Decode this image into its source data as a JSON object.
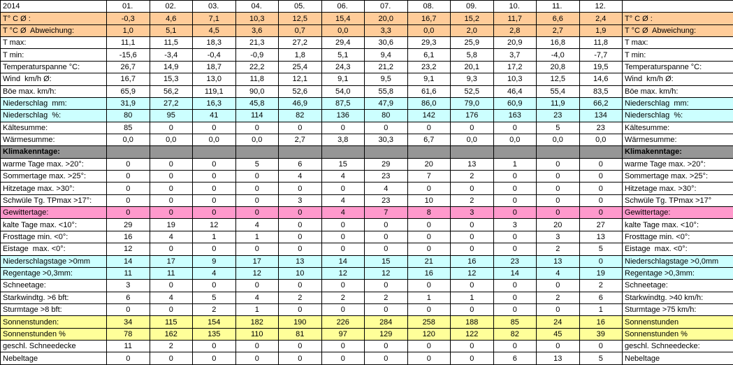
{
  "table": {
    "year": "2014",
    "months": [
      "01.",
      "02.",
      "03.",
      "04.",
      "05.",
      "06.",
      "07.",
      "08.",
      "09.",
      "10.",
      "11.",
      "12."
    ],
    "rows": [
      {
        "label": "T° C Ø :",
        "cells": [
          "-0,3",
          "4,6",
          "7,1",
          "10,3",
          "12,5",
          "15,4",
          "20,0",
          "16,7",
          "15,2",
          "11,7",
          "6,6",
          "2,4"
        ],
        "right": "T° C Ø :",
        "color": "#ffcc99"
      },
      {
        "label": "T °C Ø  Abweichung:",
        "cells": [
          "1,0",
          "5,1",
          "4,5",
          "3,6",
          "0,7",
          "0,0",
          "3,3",
          "0,0",
          "2,0",
          "2,8",
          "2,7",
          "1,9"
        ],
        "right": "T °C Ø  Abweichung:",
        "color": "#ffcc99"
      },
      {
        "label": "T max:",
        "cells": [
          "11,1",
          "11,5",
          "18,3",
          "21,3",
          "27,2",
          "29,4",
          "30,6",
          "29,3",
          "25,9",
          "20,9",
          "16,8",
          "11,8"
        ],
        "right": "T max:",
        "color": "#ffffff"
      },
      {
        "label": "T min:",
        "cells": [
          "-15,6",
          "-3,4",
          "-0,4",
          "-0,9",
          "1,8",
          "5,1",
          "9,4",
          "6,1",
          "5,8",
          "3,7",
          "-4,0",
          "-7,7"
        ],
        "right": "T min:",
        "color": "#ffffff"
      },
      {
        "label": "Temperaturspanne °C:",
        "cells": [
          "26,7",
          "14,9",
          "18,7",
          "22,2",
          "25,4",
          "24,3",
          "21,2",
          "23,2",
          "20,1",
          "17,2",
          "20,8",
          "19,5"
        ],
        "right": "Temperaturspanne °C:",
        "color": "#ffffff"
      },
      {
        "label": "Wind  km/h Ø:",
        "cells": [
          "16,7",
          "15,3",
          "13,0",
          "11,8",
          "12,1",
          "9,1",
          "9,5",
          "9,1",
          "9,3",
          "10,3",
          "12,5",
          "14,6"
        ],
        "right": "Wind  km/h Ø:",
        "color": "#ffffff"
      },
      {
        "label": "Böe max. km/h:",
        "cells": [
          "65,9",
          "56,2",
          "119,1",
          "90,0",
          "52,6",
          "54,0",
          "55,8",
          "61,6",
          "52,5",
          "46,4",
          "55,4",
          "83,5"
        ],
        "right": "Böe max. km/h:",
        "color": "#ffffff"
      },
      {
        "label": "Niederschlag  mm:",
        "cells": [
          "31,9",
          "27,2",
          "16,3",
          "45,8",
          "46,9",
          "87,5",
          "47,9",
          "86,0",
          "79,0",
          "60,9",
          "11,9",
          "66,2"
        ],
        "right": "Niederschlag  mm:",
        "color": "#ccffff"
      },
      {
        "label": "Niederschlag  %:",
        "cells": [
          "80",
          "95",
          "41",
          "114",
          "82",
          "136",
          "80",
          "142",
          "176",
          "163",
          "23",
          "134"
        ],
        "right": "Niederschlag  %:",
        "color": "#ccffff"
      },
      {
        "label": "Kältesumme:",
        "cells": [
          "85",
          "0",
          "0",
          "0",
          "0",
          "0",
          "0",
          "0",
          "0",
          "0",
          "5",
          "23"
        ],
        "right": "Kältesumme:",
        "color": "#ffffff"
      },
      {
        "label": "Wärmesumme:",
        "cells": [
          "0,0",
          "0,0",
          "0,0",
          "0,0",
          "2,7",
          "3,8",
          "30,3",
          "6,7",
          "0,0",
          "0,0",
          "0,0",
          "0,0"
        ],
        "right": "Wärmesumme:",
        "color": "#ffffff"
      },
      {
        "label": "Klimakenntage:",
        "cells": [],
        "right": "Klimakenntage:",
        "color": "#969696"
      },
      {
        "label": "warme Tage max. >20°:",
        "cells": [
          "0",
          "0",
          "0",
          "5",
          "6",
          "15",
          "29",
          "20",
          "13",
          "1",
          "0",
          "0"
        ],
        "right": "warme Tage max. >20°:",
        "color": "#ffffff"
      },
      {
        "label": "Sommertage max. >25°:",
        "cells": [
          "0",
          "0",
          "0",
          "0",
          "4",
          "4",
          "23",
          "7",
          "2",
          "0",
          "0",
          "0"
        ],
        "right": "Sommertage max. >25°:",
        "color": "#ffffff"
      },
      {
        "label": "Hitzetage max. >30°:",
        "cells": [
          "0",
          "0",
          "0",
          "0",
          "0",
          "0",
          "4",
          "0",
          "0",
          "0",
          "0",
          "0"
        ],
        "right": "Hitzetage max. >30°:",
        "color": "#ffffff"
      },
      {
        "label": "Schwüle Tg. TPmax >17°:",
        "cells": [
          "0",
          "0",
          "0",
          "0",
          "3",
          "4",
          "23",
          "10",
          "2",
          "0",
          "0",
          "0"
        ],
        "right": "Schwüle Tg. TPmax >17°",
        "color": "#ffffff"
      },
      {
        "label": "Gewittertage:",
        "cells": [
          "0",
          "0",
          "0",
          "0",
          "0",
          "4",
          "7",
          "8",
          "3",
          "0",
          "0",
          "0"
        ],
        "right": "Gewittertage:",
        "color": "#ff99cc"
      },
      {
        "label": "kalte Tage max. <10°:",
        "cells": [
          "29",
          "19",
          "12",
          "4",
          "0",
          "0",
          "0",
          "0",
          "0",
          "3",
          "20",
          "27"
        ],
        "right": "kalte Tage max. <10°:",
        "color": "#ffffff"
      },
      {
        "label": "Frosttage min. <0°:",
        "cells": [
          "16",
          "4",
          "1",
          "1",
          "0",
          "0",
          "0",
          "0",
          "0",
          "0",
          "3",
          "13"
        ],
        "right": "Frosttage min. <0°:",
        "color": "#ffffff"
      },
      {
        "label": "Eistage  max. <0°:",
        "cells": [
          "12",
          "0",
          "0",
          "0",
          "0",
          "0",
          "0",
          "0",
          "0",
          "0",
          "2",
          "5"
        ],
        "right": "Eistage  max. <0°:",
        "color": "#ffffff"
      },
      {
        "label": "Niederschlagstage >0mm",
        "cells": [
          "14",
          "17",
          "9",
          "17",
          "13",
          "14",
          "15",
          "21",
          "16",
          "23",
          "13",
          "0"
        ],
        "right": "Niederschlagstage >0,0mm",
        "color": "#ccffff"
      },
      {
        "label": "Regentage >0,3mm:",
        "cells": [
          "11",
          "11",
          "4",
          "12",
          "10",
          "12",
          "12",
          "16",
          "12",
          "14",
          "4",
          "19"
        ],
        "right": "Regentage >0,3mm:",
        "color": "#ccffff"
      },
      {
        "label": "Schneetage:",
        "cells": [
          "3",
          "0",
          "0",
          "0",
          "0",
          "0",
          "0",
          "0",
          "0",
          "0",
          "0",
          "2"
        ],
        "right": "Schneetage:",
        "color": "#ffffff"
      },
      {
        "label": "Starkwindtg. >6 bft:",
        "cells": [
          "6",
          "4",
          "5",
          "4",
          "2",
          "2",
          "2",
          "1",
          "1",
          "0",
          "2",
          "6"
        ],
        "right": "Starkwindtg. >40 km/h:",
        "color": "#ffffff"
      },
      {
        "label": "Sturmtage >8 bft:",
        "cells": [
          "0",
          "0",
          "2",
          "1",
          "0",
          "0",
          "0",
          "0",
          "0",
          "0",
          "0",
          "1"
        ],
        "right": "Sturmtage >75 km/h:",
        "color": "#ffffff"
      },
      {
        "label": "Sonnenstunden:",
        "cells": [
          "34",
          "115",
          "154",
          "182",
          "190",
          "226",
          "284",
          "258",
          "188",
          "85",
          "24",
          "16"
        ],
        "right": "Sonnenstunden",
        "color": "#ffff99"
      },
      {
        "label": "Sonnenstunden %",
        "cells": [
          "78",
          "162",
          "135",
          "110",
          "81",
          "97",
          "129",
          "120",
          "122",
          "82",
          "45",
          "39"
        ],
        "right": "Sonnenstunden %",
        "color": "#ffff99"
      },
      {
        "label": "geschl. Schneedecke",
        "cells": [
          "11",
          "2",
          "0",
          "0",
          "0",
          "0",
          "0",
          "0",
          "0",
          "0",
          "0",
          "0"
        ],
        "right": "geschl. Schneedecke:",
        "color": "#ffffff"
      },
      {
        "label": "Nebeltage",
        "cells": [
          "0",
          "0",
          "0",
          "0",
          "0",
          "0",
          "0",
          "0",
          "0",
          "6",
          "13",
          "5"
        ],
        "right": "Nebeltage",
        "color": "#ffffff"
      }
    ]
  }
}
